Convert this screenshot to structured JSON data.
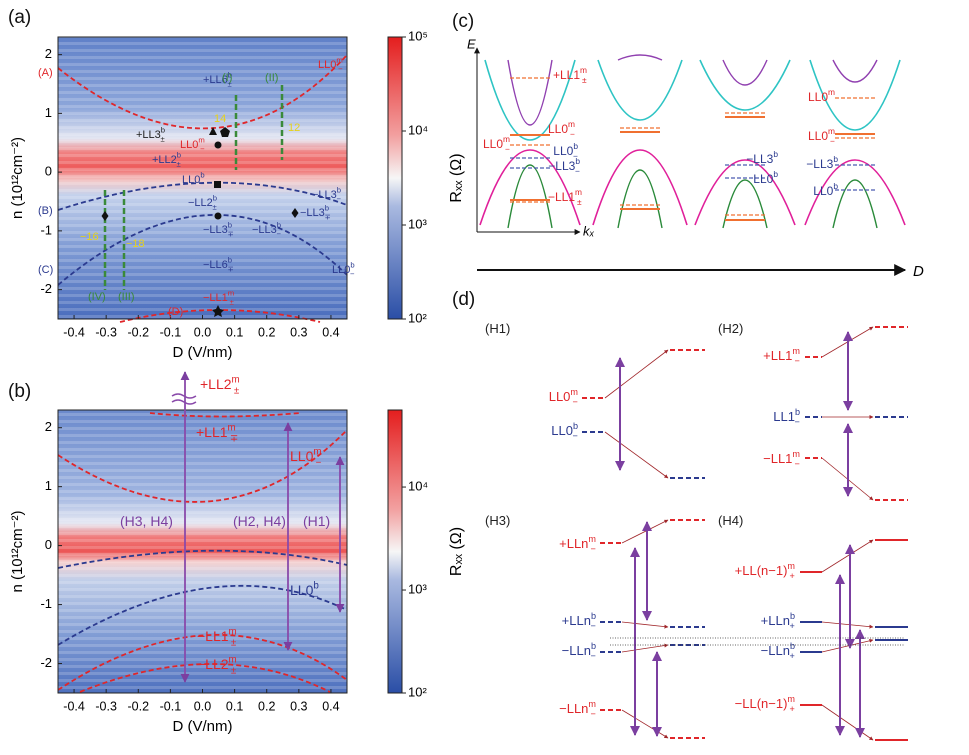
{
  "panel_labels": [
    "(a)",
    "(b)",
    "(c)",
    "(d)"
  ],
  "chart_data": [
    {
      "type": "heatmap",
      "xlabel": "D (V/nm)",
      "ylabel": "n (10¹²cm⁻²)",
      "xlim": [
        -0.45,
        0.45
      ],
      "xticks": [
        -0.4,
        -0.3,
        -0.2,
        -0.1,
        {
          "value": 0,
          "label": "0.0"
        },
        0.1,
        0.2,
        0.3,
        0.4
      ],
      "ylim": [
        -2.5,
        2.3
      ],
      "yticks": [
        -2,
        -1,
        0,
        1,
        2
      ],
      "colorbar": {
        "label": "Rₓₓ (Ω)",
        "log": true,
        "lim": [
          100,
          100000
        ],
        "ticks": [
          {
            "value": 100,
            "label": "10²"
          },
          {
            "value": 1000,
            "label": "10³"
          },
          {
            "value": 10000,
            "label": "10⁴"
          },
          {
            "value": 100000,
            "label": "10⁵"
          }
        ]
      },
      "annotations": [
        {
          "text": "(A)",
          "color": "#e0262a"
        },
        {
          "text": "(B)",
          "color": "#2b3a8f"
        },
        {
          "text": "(C)",
          "color": "#2b3a8f"
        },
        {
          "text": "(D)",
          "color": "#e0262a"
        },
        {
          "text": "LL0",
          "sup": "m",
          "sub": "−",
          "color": "#e0262a"
        },
        {
          "text": "+LL6",
          "sup": "b",
          "sub": "±",
          "color": "#2b3a8f"
        },
        {
          "text": "(I)",
          "color": "#3a8a3a"
        },
        {
          "text": "(II)",
          "color": "#3a8a3a"
        },
        {
          "text": "14",
          "color": "#e6d21a"
        },
        {
          "text": "12",
          "color": "#e6d21a"
        },
        {
          "text": "+LL3",
          "sup": "b",
          "sub": "±",
          "color": "#222222"
        },
        {
          "text": "LL0",
          "sup": "m",
          "sub": "−",
          "color": "#e0262a"
        },
        {
          "text": "+LL2",
          "sup": "b",
          "sub": "±",
          "color": "#2b3a8f"
        },
        {
          "text": "LL0",
          "sup": "b",
          "sub": "−",
          "color": "#2b3a8f"
        },
        {
          "text": "−LL2",
          "sup": "b",
          "sub": "±",
          "color": "#2b3a8f"
        },
        {
          "text": "−LL3",
          "sup": "b",
          "sub": "−",
          "color": "#2b3a8f"
        },
        {
          "text": "−LL3",
          "sup": "b",
          "sub": "∓",
          "color": "#2b3a8f"
        },
        {
          "text": "−LL3",
          "sup": "b",
          "sub": "∓",
          "color": "#2b3a8f"
        },
        {
          "text": "−LL3",
          "sup": "b",
          "sub": "−",
          "color": "#2b3a8f"
        },
        {
          "text": "−16",
          "color": "#e6d21a"
        },
        {
          "text": "−18",
          "color": "#e6d21a"
        },
        {
          "text": "−LL6",
          "sup": "b",
          "sub": "∓",
          "color": "#2b3a8f"
        },
        {
          "text": "LL0",
          "sup": "b",
          "sub": "−",
          "color": "#2b3a8f"
        },
        {
          "text": "(IV)",
          "color": "#3a8a3a"
        },
        {
          "text": "(III)",
          "color": "#3a8a3a"
        },
        {
          "text": "−LL1",
          "sup": "m",
          "sub": "±",
          "color": "#e0262a"
        }
      ]
    },
    {
      "type": "heatmap",
      "xlabel": "D (V/nm)",
      "ylabel": "n (10¹²cm⁻²)",
      "xlim": [
        -0.45,
        0.45
      ],
      "xticks": [
        -0.4,
        -0.3,
        -0.2,
        -0.1,
        {
          "value": 0,
          "label": "0.0"
        },
        0.1,
        0.2,
        0.3,
        0.4
      ],
      "ylim": [
        -2.5,
        2.3
      ],
      "yticks": [
        -2,
        -1,
        0,
        1,
        2
      ],
      "colorbar": {
        "label": "Rₓₓ (Ω)",
        "log": true,
        "lim": [
          100,
          56000
        ],
        "ticks": [
          {
            "value": 100,
            "label": "10²"
          },
          {
            "value": 1000,
            "label": "10³"
          },
          {
            "value": 10000,
            "label": "10⁴"
          }
        ]
      },
      "annotations": [
        {
          "text": "+LL2",
          "sup": "m",
          "sub": "±",
          "color": "#e0262a"
        },
        {
          "text": "+LL1",
          "sup": "m",
          "sub": "∓",
          "color": "#e0262a"
        },
        {
          "text": "LL0",
          "sup": "m",
          "sub": "−",
          "color": "#e0262a"
        },
        {
          "text": "(H3, H4)",
          "color": "#7b3fa0"
        },
        {
          "text": "(H2, H4)",
          "color": "#7b3fa0"
        },
        {
          "text": "(H1)",
          "color": "#7b3fa0"
        },
        {
          "text": "LL0",
          "sup": "b",
          "sub": "−",
          "color": "#2b3a8f"
        },
        {
          "text": "−LL1",
          "sup": "m",
          "sub": "±",
          "color": "#e0262a"
        },
        {
          "text": "−LL2",
          "sup": "m",
          "sub": "±",
          "color": "#e0262a"
        }
      ]
    }
  ],
  "diagram_c": {
    "axis_e": "E",
    "axis_k": "kₓ",
    "axis_d": "D",
    "labels": [
      {
        "text": "+LL1",
        "sup": "m",
        "sub": "±",
        "color": "#e0262a"
      },
      {
        "text": "LL0",
        "sup": "m",
        "sub": "−",
        "color": "#e0262a"
      },
      {
        "text": "LL0",
        "sup": "m",
        "sub": "−",
        "color": "#e0262a"
      },
      {
        "text": "LL0",
        "sup": "b",
        "sub": "−",
        "color": "#2b3a8f"
      },
      {
        "text": "−LL3",
        "sup": "b",
        "sub": "−",
        "color": "#2b3a8f"
      },
      {
        "text": "−LL1",
        "sup": "m",
        "sub": "±",
        "color": "#e0262a"
      },
      {
        "text": "−LL3",
        "sup": "b",
        "color": "#2b3a8f"
      },
      {
        "text": "LL0",
        "sup": "b",
        "color": "#2b3a8f"
      },
      {
        "text": "LL0",
        "sup": "m",
        "color": "#e0262a"
      },
      {
        "text": "LL0",
        "sup": "m",
        "sub": "−",
        "color": "#e0262a"
      },
      {
        "text": "−LL3",
        "sup": "b",
        "color": "#2b3a8f"
      },
      {
        "text": "LL0",
        "sup": "b",
        "color": "#2b3a8f"
      }
    ]
  },
  "diagram_d": {
    "labels": [
      {
        "text": "(H1)",
        "color": "#222222"
      },
      {
        "text": "(H2)",
        "color": "#222222"
      },
      {
        "text": "(H3)",
        "color": "#222222"
      },
      {
        "text": "(H4)",
        "color": "#222222"
      },
      {
        "text": "LL0",
        "sup": "m",
        "sub": "−",
        "color": "#e0262a"
      },
      {
        "text": "LL0",
        "sup": "b",
        "sub": "−",
        "color": "#2b3a8f"
      },
      {
        "text": "+LL1",
        "sup": "m",
        "sub": "−",
        "color": "#e0262a"
      },
      {
        "text": "LL1",
        "sup": "b",
        "sub": "−",
        "color": "#2b3a8f"
      },
      {
        "text": "−LL1",
        "sup": "m",
        "sub": "−",
        "color": "#e0262a"
      },
      {
        "text": "+LLn",
        "sup": "m",
        "sub": "−",
        "color": "#e0262a"
      },
      {
        "text": "+LLn",
        "sup": "b",
        "sub": "−",
        "color": "#2b3a8f"
      },
      {
        "text": "−LLn",
        "sup": "b",
        "sub": "−",
        "color": "#2b3a8f"
      },
      {
        "text": "−LLn",
        "sup": "m",
        "sub": "−",
        "color": "#e0262a"
      },
      {
        "text": "+LL(n−1)",
        "sup": "m",
        "sub": "+",
        "color": "#e0262a"
      },
      {
        "text": "+LLn",
        "sup": "b",
        "sub": "+",
        "color": "#2b3a8f"
      },
      {
        "text": "−LLn",
        "sup": "b",
        "sub": "+",
        "color": "#2b3a8f"
      },
      {
        "text": "−LL(n−1)",
        "sup": "m",
        "sub": "+",
        "color": "#e0262a"
      }
    ]
  }
}
